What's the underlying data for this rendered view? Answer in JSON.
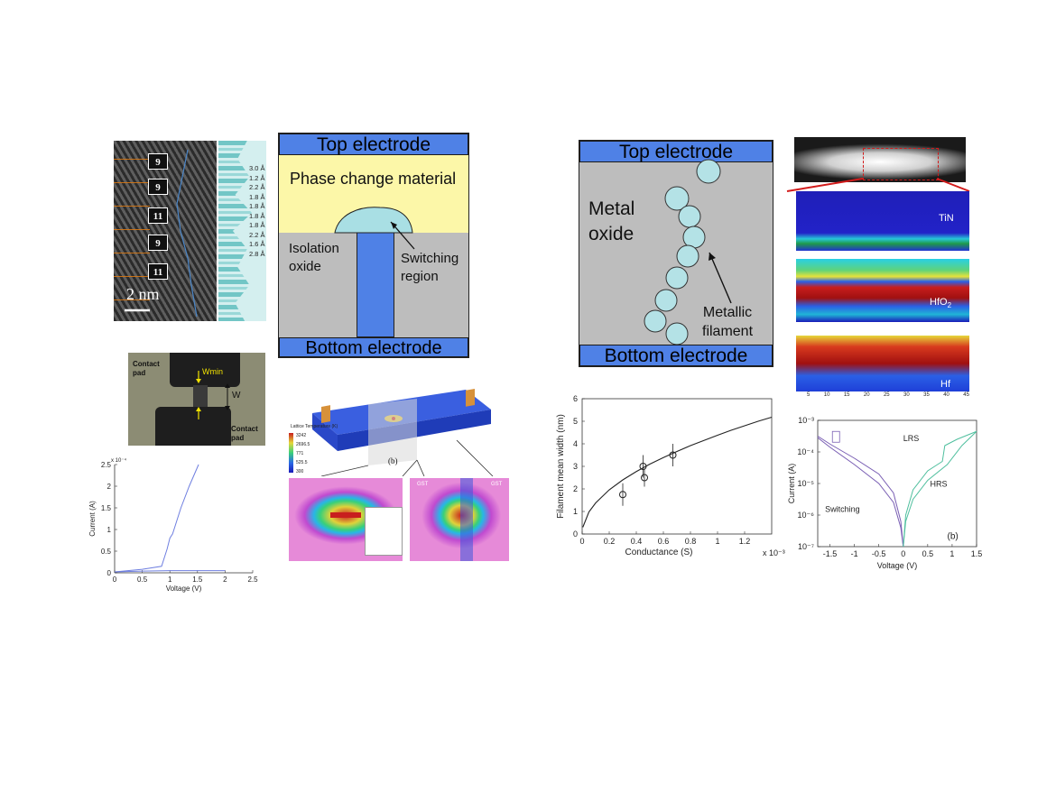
{
  "stem": {
    "stack_labels": [
      "9",
      "9",
      "11",
      "9",
      "11"
    ],
    "scale": "2 nm",
    "spacings": [
      "3.0 Å",
      "1.2 Å",
      "2.2 Å",
      "1.8 Å",
      "1.8 Å",
      "1.8 Å",
      "1.8 Å",
      "2.2 Å",
      "1.6 Å",
      "2.8 Å"
    ]
  },
  "pcm": {
    "top": "Top electrode",
    "material": "Phase change material",
    "isolation": [
      "Isolation",
      "oxide"
    ],
    "switching": [
      "Switching",
      "region"
    ],
    "bottom": "Bottom electrode"
  },
  "rram": {
    "top": "Top electrode",
    "oxide": [
      "Metal",
      "oxide"
    ],
    "filament": [
      "Metallic",
      "filament"
    ],
    "bottom": "Bottom electrode"
  },
  "eels": {
    "maps": [
      "TiN",
      "HfO2",
      "Hf"
    ],
    "ticks_x": [
      "5",
      "10",
      "15",
      "20",
      "25",
      "30",
      "35",
      "40",
      "45"
    ]
  },
  "micrograph": {
    "pad_top": [
      "Contact",
      "pad"
    ],
    "pad_bottom": [
      "Contact",
      "pad"
    ],
    "wmin": "Wmin",
    "w": "W"
  },
  "thermal": {
    "legend_title": "Lattice Temperature (K)",
    "legend_values": [
      "3242",
      "2696.5",
      "771",
      "525.5",
      "300"
    ],
    "label_b": "(b)",
    "gst": "GST"
  },
  "chart_data": [
    {
      "type": "line",
      "id": "pcm-iv",
      "xlabel": "Voltage (V)",
      "ylabel": "Current (A)",
      "xlim": [
        0,
        2.5
      ],
      "ylim": [
        0,
        2.5
      ],
      "y_multiplier": "x 10⁻⁴",
      "xticks": [
        "0",
        "0.5",
        "1",
        "1.5",
        "2",
        "2.5"
      ],
      "yticks": [
        "0",
        "0.5",
        "1",
        "1.5",
        "2",
        "2.5"
      ],
      "series": [
        {
          "x": [
            0,
            0.5,
            0.85,
            0.95,
            1.0,
            1.05,
            1.2,
            1.35,
            1.52
          ],
          "y": [
            0.02,
            0.08,
            0.15,
            0.55,
            0.8,
            0.9,
            1.5,
            2.0,
            2.5
          ]
        },
        {
          "x": [
            0,
            0.5,
            1.0,
            1.5,
            2.0
          ],
          "y": [
            0.02,
            0.04,
            0.05,
            0.05,
            0.05
          ]
        }
      ],
      "color": "#6f7fe0"
    },
    {
      "type": "scatter",
      "id": "filament-width",
      "xlabel": "Conductance (S)",
      "ylabel": "Filament mean width (nm)",
      "xlim": [
        0,
        1.4
      ],
      "ylim": [
        0,
        6
      ],
      "x_multiplier": "x 10⁻³",
      "xticks": [
        "0",
        "0.2",
        "0.4",
        "0.6",
        "0.8",
        "1",
        "1.2"
      ],
      "yticks": [
        "0",
        "1",
        "2",
        "3",
        "4",
        "5",
        "6"
      ],
      "points": [
        {
          "x": 0.3,
          "y": 1.75,
          "err": 0.5
        },
        {
          "x": 0.45,
          "y": 3.0,
          "err": 0.5
        },
        {
          "x": 0.46,
          "y": 2.5,
          "err": 0.4
        },
        {
          "x": 0.67,
          "y": 3.5,
          "err": 0.5
        }
      ],
      "fit": {
        "x": [
          0.005,
          0.05,
          0.1,
          0.2,
          0.3,
          0.4,
          0.5,
          0.6,
          0.7,
          0.8,
          0.9,
          1.0,
          1.1,
          1.2,
          1.3,
          1.4
        ],
        "y": [
          0.3,
          0.98,
          1.38,
          1.96,
          2.4,
          2.77,
          3.1,
          3.39,
          3.66,
          3.92,
          4.15,
          4.38,
          4.6,
          4.8,
          5.0,
          5.18
        ]
      }
    },
    {
      "type": "line",
      "id": "rram-iv",
      "xlabel": "Voltage (V)",
      "ylabel": "Current (A)",
      "xlim": [
        -1.75,
        1.5
      ],
      "ylim_log": [
        -7,
        -3
      ],
      "xticks": [
        "-1.5",
        "-1",
        "-0.5",
        "0",
        "0.5",
        "1",
        "1.5"
      ],
      "yticks": [
        "10⁻⁷",
        "10⁻⁶",
        "10⁻⁵",
        "10⁻⁴",
        "10⁻³"
      ],
      "annotations": [
        "LRS",
        "HRS",
        "Switching",
        "(b)"
      ],
      "colors": [
        "#7a5fb4",
        "#4fbf9e"
      ]
    }
  ]
}
